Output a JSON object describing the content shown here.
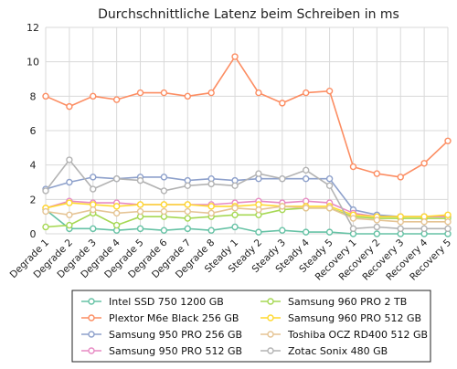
{
  "chart_data": {
    "type": "line",
    "title": "Durchschnittliche Latenz beim Schreiben in ms",
    "xlabel": "",
    "ylabel": "",
    "ylim": [
      0,
      12
    ],
    "yticks": [
      0,
      2,
      4,
      6,
      8,
      10,
      12
    ],
    "grid": true,
    "legend_position": "bottom",
    "categories": [
      "Degrade 1",
      "Degrade 2",
      "Degrade 3",
      "Degrade 4",
      "Degrade 5",
      "Degrade 6",
      "Degrade 7",
      "Degrade 8",
      "Steady 1",
      "Steady 2",
      "Steady 3",
      "Steady 4",
      "Steady 5",
      "Recovery 1",
      "Recovery 2",
      "Recovery 3",
      "Recovery 4",
      "Recovery 5"
    ],
    "series": [
      {
        "name": "Intel SSD 750 1200 GB",
        "color": "#66c2a5",
        "values": [
          1.4,
          0.3,
          0.3,
          0.2,
          0.3,
          0.2,
          0.3,
          0.2,
          0.4,
          0.1,
          0.2,
          0.1,
          0.1,
          0.0,
          0.0,
          0.0,
          0.0,
          0.0
        ]
      },
      {
        "name": "Plextor M6e Black 256 GB",
        "color": "#fc8d62",
        "values": [
          8.0,
          7.4,
          8.0,
          7.8,
          8.2,
          8.2,
          8.0,
          8.2,
          10.3,
          8.2,
          7.6,
          8.2,
          8.3,
          3.9,
          3.5,
          3.3,
          4.1,
          5.4
        ]
      },
      {
        "name": "Samsung 950 PRO 256 GB",
        "color": "#8da0cb",
        "values": [
          2.6,
          3.0,
          3.3,
          3.2,
          3.3,
          3.3,
          3.1,
          3.2,
          3.1,
          3.2,
          3.2,
          3.2,
          3.2,
          1.4,
          1.1,
          1.0,
          1.0,
          1.0
        ]
      },
      {
        "name": "Samsung 950 PRO 512 GB",
        "color": "#e78ac3",
        "values": [
          1.5,
          1.9,
          1.8,
          1.8,
          1.7,
          1.7,
          1.7,
          1.7,
          1.8,
          1.9,
          1.8,
          1.9,
          1.8,
          1.2,
          1.0,
          1.0,
          1.0,
          1.0
        ]
      },
      {
        "name": "Samsung 960 PRO 2 TB",
        "color": "#a6d854",
        "values": [
          0.4,
          0.5,
          1.2,
          0.5,
          1.0,
          1.0,
          0.9,
          1.0,
          1.1,
          1.1,
          1.4,
          1.5,
          1.5,
          1.0,
          0.9,
          0.9,
          0.9,
          0.9
        ]
      },
      {
        "name": "Samsung 960 PRO 512 GB",
        "color": "#ffd92f",
        "values": [
          1.5,
          1.8,
          1.7,
          1.6,
          1.7,
          1.7,
          1.7,
          1.6,
          1.6,
          1.7,
          1.6,
          1.6,
          1.6,
          1.1,
          1.0,
          1.0,
          1.0,
          1.1
        ]
      },
      {
        "name": "Toshiba OCZ RD400 512 GB",
        "color": "#e5c494",
        "values": [
          1.3,
          1.1,
          1.4,
          1.2,
          1.3,
          1.3,
          1.3,
          1.2,
          1.5,
          1.4,
          1.6,
          1.5,
          1.5,
          0.9,
          0.8,
          0.7,
          0.7,
          0.7
        ]
      },
      {
        "name": "Zotac Sonix 480 GB",
        "color": "#b3b3b3",
        "values": [
          2.5,
          4.3,
          2.6,
          3.2,
          3.1,
          2.5,
          2.8,
          2.9,
          2.8,
          3.5,
          3.2,
          3.7,
          2.8,
          0.3,
          0.4,
          0.3,
          0.3,
          0.3
        ]
      }
    ]
  }
}
